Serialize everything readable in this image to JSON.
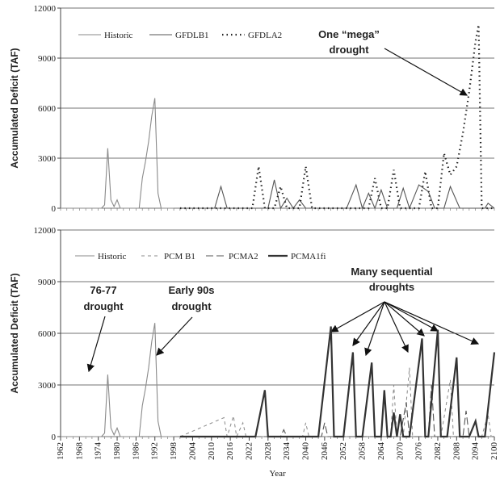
{
  "chart_data": [
    {
      "type": "line",
      "ylabel": "Accumulated Deficit (TAF)",
      "xlim": [
        1962,
        2100
      ],
      "ylim": [
        0,
        12000
      ],
      "yticks": [
        0,
        3000,
        6000,
        9000,
        12000
      ],
      "grid": true,
      "series": [
        {
          "name": "Historic",
          "color": "#8a8a8a",
          "dash": "solid",
          "x": [
            1962,
            1975,
            1976,
            1977,
            1978,
            1979,
            1980,
            1981,
            1987,
            1988,
            1989,
            1990,
            1991,
            1992,
            1993,
            1994,
            1998
          ],
          "values": [
            0,
            0,
            200,
            3600,
            500,
            100,
            500,
            0,
            0,
            1800,
            2800,
            4000,
            5500,
            6600,
            900,
            0,
            0
          ]
        },
        {
          "name": "GFDLB1",
          "color": "#555555",
          "dash": "solid",
          "x": [
            2000,
            2011,
            2013,
            2015,
            2028,
            2030,
            2032,
            2034,
            2036,
            2038,
            2040,
            2053,
            2056,
            2058,
            2060,
            2062,
            2064,
            2066,
            2069,
            2071,
            2073,
            2076,
            2079,
            2081,
            2084,
            2086,
            2089,
            2097,
            2098,
            2100
          ],
          "values": [
            0,
            0,
            1300,
            0,
            0,
            1700,
            0,
            600,
            0,
            500,
            0,
            0,
            1400,
            0,
            900,
            0,
            1100,
            0,
            0,
            1200,
            0,
            1400,
            1000,
            0,
            0,
            1300,
            0,
            0,
            300,
            0
          ]
        },
        {
          "name": "GFDLA2",
          "color": "#222222",
          "dash": "dotted",
          "x": [
            2000,
            2023,
            2025,
            2027,
            2030,
            2032,
            2034,
            2038,
            2040,
            2042,
            2060,
            2062,
            2064,
            2066,
            2068,
            2070,
            2076,
            2078,
            2080,
            2082,
            2084,
            2086,
            2088,
            2090,
            2092,
            2094,
            2095,
            2096,
            2100
          ],
          "values": [
            0,
            0,
            2500,
            0,
            0,
            1300,
            0,
            0,
            2500,
            0,
            0,
            1800,
            0,
            0,
            2300,
            0,
            0,
            2200,
            0,
            0,
            3300,
            2000,
            2500,
            4500,
            7000,
            10000,
            11000,
            0,
            0
          ]
        }
      ],
      "annotations": [
        [
          "One “mega”",
          "drought"
        ]
      ]
    },
    {
      "type": "line",
      "ylabel": "Accumulated Deficit (TAF)",
      "xlabel": "Year",
      "xlim": [
        1962,
        2100
      ],
      "ylim": [
        0,
        12000
      ],
      "yticks": [
        0,
        3000,
        6000,
        9000,
        12000
      ],
      "grid": true,
      "xticks": [
        1962,
        1968,
        1974,
        1980,
        1986,
        1992,
        1998,
        2004,
        2010,
        2016,
        2022,
        2028,
        2034,
        2040,
        2046,
        2052,
        2058,
        2064,
        2070,
        2076,
        2082,
        2088,
        2094,
        2100
      ],
      "series": [
        {
          "name": "Historic",
          "color": "#8a8a8a",
          "dash": "solid",
          "x": [
            1962,
            1975,
            1976,
            1977,
            1978,
            1979,
            1980,
            1981,
            1987,
            1988,
            1989,
            1990,
            1991,
            1992,
            1993,
            1994,
            1998
          ],
          "values": [
            0,
            0,
            200,
            3600,
            500,
            100,
            500,
            0,
            0,
            1800,
            2800,
            4000,
            5500,
            6600,
            900,
            0,
            0
          ]
        },
        {
          "name": "PCM B1",
          "color": "#888888",
          "dash": "dashed",
          "x": [
            2000,
            2014,
            2015,
            2017,
            2018,
            2020,
            2021,
            2039,
            2040,
            2041,
            2067,
            2068,
            2069,
            2071,
            2073,
            2074,
            2083,
            2086,
            2087,
            2096,
            2098,
            2099,
            2100
          ],
          "values": [
            0,
            1100,
            0,
            1200,
            0,
            800,
            0,
            0,
            800,
            0,
            0,
            3000,
            0,
            0,
            4000,
            0,
            0,
            3300,
            0,
            0,
            1300,
            0,
            0
          ]
        },
        {
          "name": "PCMA2",
          "color": "#555555",
          "dash": "long-dashed",
          "x": [
            2000,
            2032,
            2033,
            2034,
            2045,
            2046,
            2047,
            2070,
            2072,
            2073,
            2079,
            2080,
            2081,
            2090,
            2091,
            2092,
            2100
          ],
          "values": [
            0,
            0,
            400,
            0,
            0,
            800,
            0,
            0,
            2000,
            0,
            0,
            3000,
            0,
            0,
            1500,
            0,
            0
          ]
        },
        {
          "name": "PCMA1fi",
          "color": "#333333",
          "dash": "thick",
          "x": [
            2000,
            2024,
            2027,
            2028,
            2044,
            2048,
            2049,
            2052,
            2055,
            2056,
            2058,
            2061,
            2062,
            2064,
            2065,
            2066,
            2067,
            2068,
            2069,
            2070,
            2071,
            2073,
            2077,
            2078,
            2079,
            2082,
            2083,
            2085,
            2088,
            2089,
            2092,
            2094,
            2095,
            2097,
            2100
          ],
          "values": [
            0,
            0,
            2700,
            0,
            0,
            6400,
            0,
            0,
            4900,
            0,
            0,
            4300,
            0,
            0,
            2700,
            0,
            0,
            1400,
            0,
            1300,
            0,
            0,
            5700,
            0,
            0,
            6200,
            0,
            0,
            4600,
            0,
            0,
            900,
            0,
            0,
            4900
          ]
        }
      ],
      "annotations": [
        [
          "76-77",
          "drought"
        ],
        [
          "Early 90s",
          "drought"
        ],
        [
          "Many sequential",
          "droughts"
        ]
      ]
    }
  ]
}
